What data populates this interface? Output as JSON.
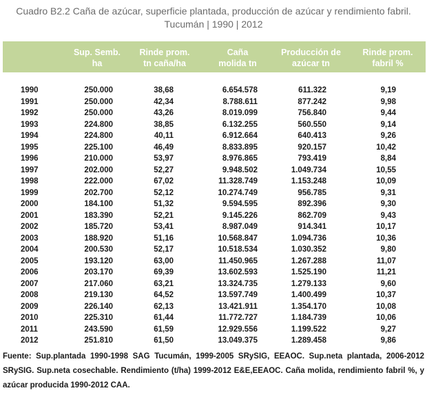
{
  "title": {
    "line1": "Cuadro B2.2 Caña de azúcar, superficie plantada, producción de azúcar y rendimiento fabril.",
    "line2": "Tucumán | 1990 | 2012"
  },
  "table": {
    "header_color": "#c3d69b",
    "columns": [
      {
        "line1": "Sup. Semb.",
        "line2": "ha"
      },
      {
        "line1": "Rinde prom.",
        "line2": "tn caña/ha"
      },
      {
        "line1": "Caña",
        "line2": "molida tn"
      },
      {
        "line1": "Producción de",
        "line2": "azúcar tn"
      },
      {
        "line1": "Rinde  prom.",
        "line2": "fabril %"
      }
    ],
    "rows": [
      {
        "year": "1990",
        "sup": "250.000",
        "rinde": "38,68",
        "cana": "6.654.578",
        "prod": "611.322",
        "fabril": "9,19"
      },
      {
        "year": "1991",
        "sup": "250.000",
        "rinde": "42,34",
        "cana": "8.788.611",
        "prod": "877.242",
        "fabril": "9,98"
      },
      {
        "year": "1992",
        "sup": "250.000",
        "rinde": "43,26",
        "cana": "8.019.099",
        "prod": "756.840",
        "fabril": "9,44"
      },
      {
        "year": "1993",
        "sup": "224.800",
        "rinde": "38,85",
        "cana": "6.132.255",
        "prod": "560.550",
        "fabril": "9,14"
      },
      {
        "year": "1994",
        "sup": "224.800",
        "rinde": "40,11",
        "cana": "6.912.664",
        "prod": "640.413",
        "fabril": "9,26"
      },
      {
        "year": "1995",
        "sup": "225.100",
        "rinde": "46,49",
        "cana": "8.833.895",
        "prod": "920.157",
        "fabril": "10,42"
      },
      {
        "year": "1996",
        "sup": "210.000",
        "rinde": "53,97",
        "cana": "8.976.865",
        "prod": "793.419",
        "fabril": "8,84"
      },
      {
        "year": "1997",
        "sup": "202.000",
        "rinde": "52,27",
        "cana": "9.948.502",
        "prod": "1.049.734",
        "fabril": "10,55"
      },
      {
        "year": "1998",
        "sup": "222.000",
        "rinde": "67,02",
        "cana": "11.328.749",
        "prod": "1.153.248",
        "fabril": "10,09"
      },
      {
        "year": "1999",
        "sup": "202.700",
        "rinde": "52,12",
        "cana": "10.274.749",
        "prod": "956.785",
        "fabril": "9,31"
      },
      {
        "year": "2000",
        "sup": "184.100",
        "rinde": "51,32",
        "cana": "9.594.595",
        "prod": "892.396",
        "fabril": "9,30"
      },
      {
        "year": "2001",
        "sup": "183.390",
        "rinde": "52,21",
        "cana": "9.145.226",
        "prod": "862.709",
        "fabril": "9,43"
      },
      {
        "year": "2002",
        "sup": "185.720",
        "rinde": "53,41",
        "cana": "8.987.049",
        "prod": "914.341",
        "fabril": "10,17"
      },
      {
        "year": "2003",
        "sup": "188.920",
        "rinde": "51,16",
        "cana": "10.568.847",
        "prod": "1.094.736",
        "fabril": "10,36"
      },
      {
        "year": "2004",
        "sup": "200.530",
        "rinde": "52,17",
        "cana": "10.518.534",
        "prod": "1.030.352",
        "fabril": "9,80"
      },
      {
        "year": "2005",
        "sup": "193.120",
        "rinde": "63,00",
        "cana": "11.450.965",
        "prod": "1.267.288",
        "fabril": "11,07"
      },
      {
        "year": "2006",
        "sup": "203.170",
        "rinde": "69,39",
        "cana": "13.602.593",
        "prod": "1.525.190",
        "fabril": "11,21"
      },
      {
        "year": "2007",
        "sup": "217.060",
        "rinde": "63,21",
        "cana": "13.324.735",
        "prod": "1.279.133",
        "fabril": "9,60"
      },
      {
        "year": "2008",
        "sup": "219.130",
        "rinde": "64,52",
        "cana": "13.597.749",
        "prod": "1.400.499",
        "fabril": "10,37"
      },
      {
        "year": "2009",
        "sup": "226.140",
        "rinde": "62,13",
        "cana": "13.421.911",
        "prod": "1.354.170",
        "fabril": "10,08"
      },
      {
        "year": "2010",
        "sup": "225.310",
        "rinde": "61,44",
        "cana": "11.772.727",
        "prod": "1.184.739",
        "fabril": "10,06"
      },
      {
        "year": "2011",
        "sup": "243.590",
        "rinde": "61,59",
        "cana": "12.929.556",
        "prod": "1.199.522",
        "fabril": "9,27"
      },
      {
        "year": "2012",
        "sup": "251.810",
        "rinde": "61,50",
        "cana": "13.049.375",
        "prod": "1.289.458",
        "fabril": "9,86"
      }
    ]
  },
  "source": "Fuente: Sup.plantada 1990-1998 SAG Tucumán, 1999-2005 SRySIG, EEAOC. Sup.neta plantada, 2006-2012 SRySIG. Sup.neta cosechable. Rendimiento (t/ha) 1999-2012 E&E,EEAOC. Caña molida, rendimiento fabril %, y azúcar producida 1990-2012 CAA."
}
